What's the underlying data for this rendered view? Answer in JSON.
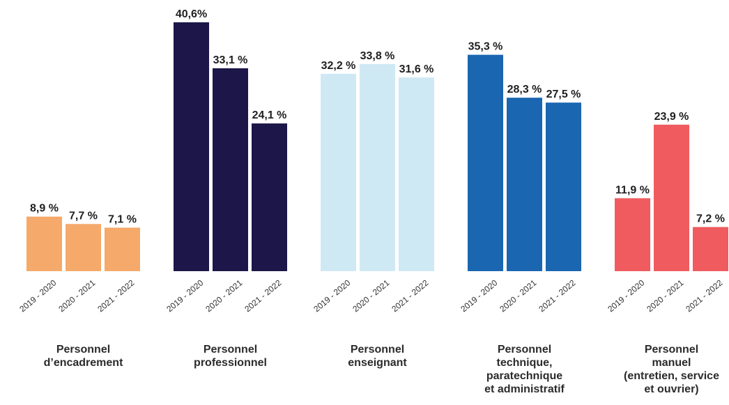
{
  "chart_data": {
    "type": "bar",
    "title": "",
    "xlabel": "",
    "ylabel": "",
    "ylim": [
      0,
      40.6
    ],
    "periods": [
      "2019 - 2020",
      "2020 - 2021",
      "2021 - 2022"
    ],
    "groups": [
      {
        "label_lines": [
          "Personnel",
          "d’encadrement"
        ],
        "color": "#f5a96a",
        "values": [
          8.9,
          7.7,
          7.1
        ],
        "value_labels": [
          "8,9 %",
          "7,7 %",
          "7,1 %"
        ]
      },
      {
        "label_lines": [
          "Personnel",
          "professionnel"
        ],
        "color": "#1c1748",
        "values": [
          40.6,
          33.1,
          24.1
        ],
        "value_labels": [
          "40,6%",
          "33,1 %",
          "24,1 %"
        ]
      },
      {
        "label_lines": [
          "Personnel",
          "enseignant"
        ],
        "color": "#cfe9f4",
        "values": [
          32.2,
          33.8,
          31.6
        ],
        "value_labels": [
          "32,2 %",
          "33,8 %",
          "31,6 %"
        ]
      },
      {
        "label_lines": [
          "Personnel",
          "technique,",
          "paratechnique",
          "et administratif"
        ],
        "color": "#1a66b1",
        "values": [
          35.3,
          28.3,
          27.5
        ],
        "value_labels": [
          "35,3 %",
          "28,3 %",
          "27,5 %"
        ]
      },
      {
        "label_lines": [
          "Personnel",
          "manuel",
          "(entretien, service",
          "et ouvrier)"
        ],
        "color": "#ef5b5f",
        "values": [
          11.9,
          23.9,
          7.2
        ],
        "value_labels": [
          "11,9 %",
          "23,9 %",
          "7,2 %"
        ]
      }
    ]
  }
}
